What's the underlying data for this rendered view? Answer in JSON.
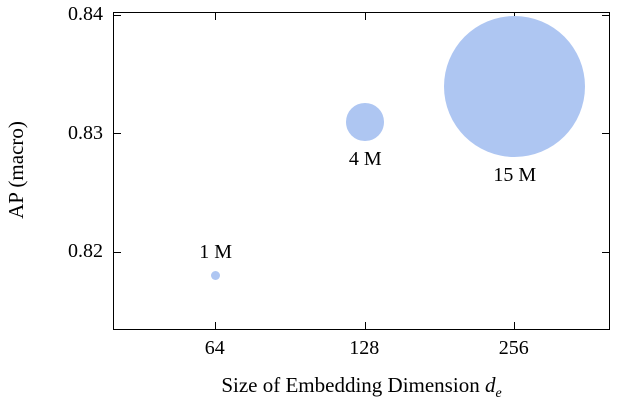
{
  "chart_data": {
    "type": "scatter",
    "subtype": "bubble",
    "title": "",
    "xlabel": "Size of Embedding Dimension",
    "xlabel_var": "d",
    "xlabel_var_sub": "e",
    "ylabel": "AP (macro)",
    "x_scale": "log2",
    "xticks": [
      64,
      128,
      256
    ],
    "xtick_labels": [
      "64",
      "128",
      "256"
    ],
    "yticks": [
      0.82,
      0.83,
      0.84
    ],
    "ytick_labels": [
      "0.82",
      "0.83",
      "0.84"
    ],
    "xlim_log2": [
      5.32,
      8.63
    ],
    "ylim": [
      0.8135,
      0.8402
    ],
    "grid": false,
    "legend": "none",
    "bubble_color": "#aec6f2",
    "radius_px_per_million": 4.7,
    "points": [
      {
        "x": 64,
        "y": 0.818,
        "params_millions": 1,
        "label": "1 M",
        "label_position": "above"
      },
      {
        "x": 128,
        "y": 0.831,
        "params_millions": 4,
        "label": "4 M",
        "label_position": "below"
      },
      {
        "x": 256,
        "y": 0.834,
        "params_millions": 15,
        "label": "15 M",
        "label_position": "below"
      }
    ]
  }
}
